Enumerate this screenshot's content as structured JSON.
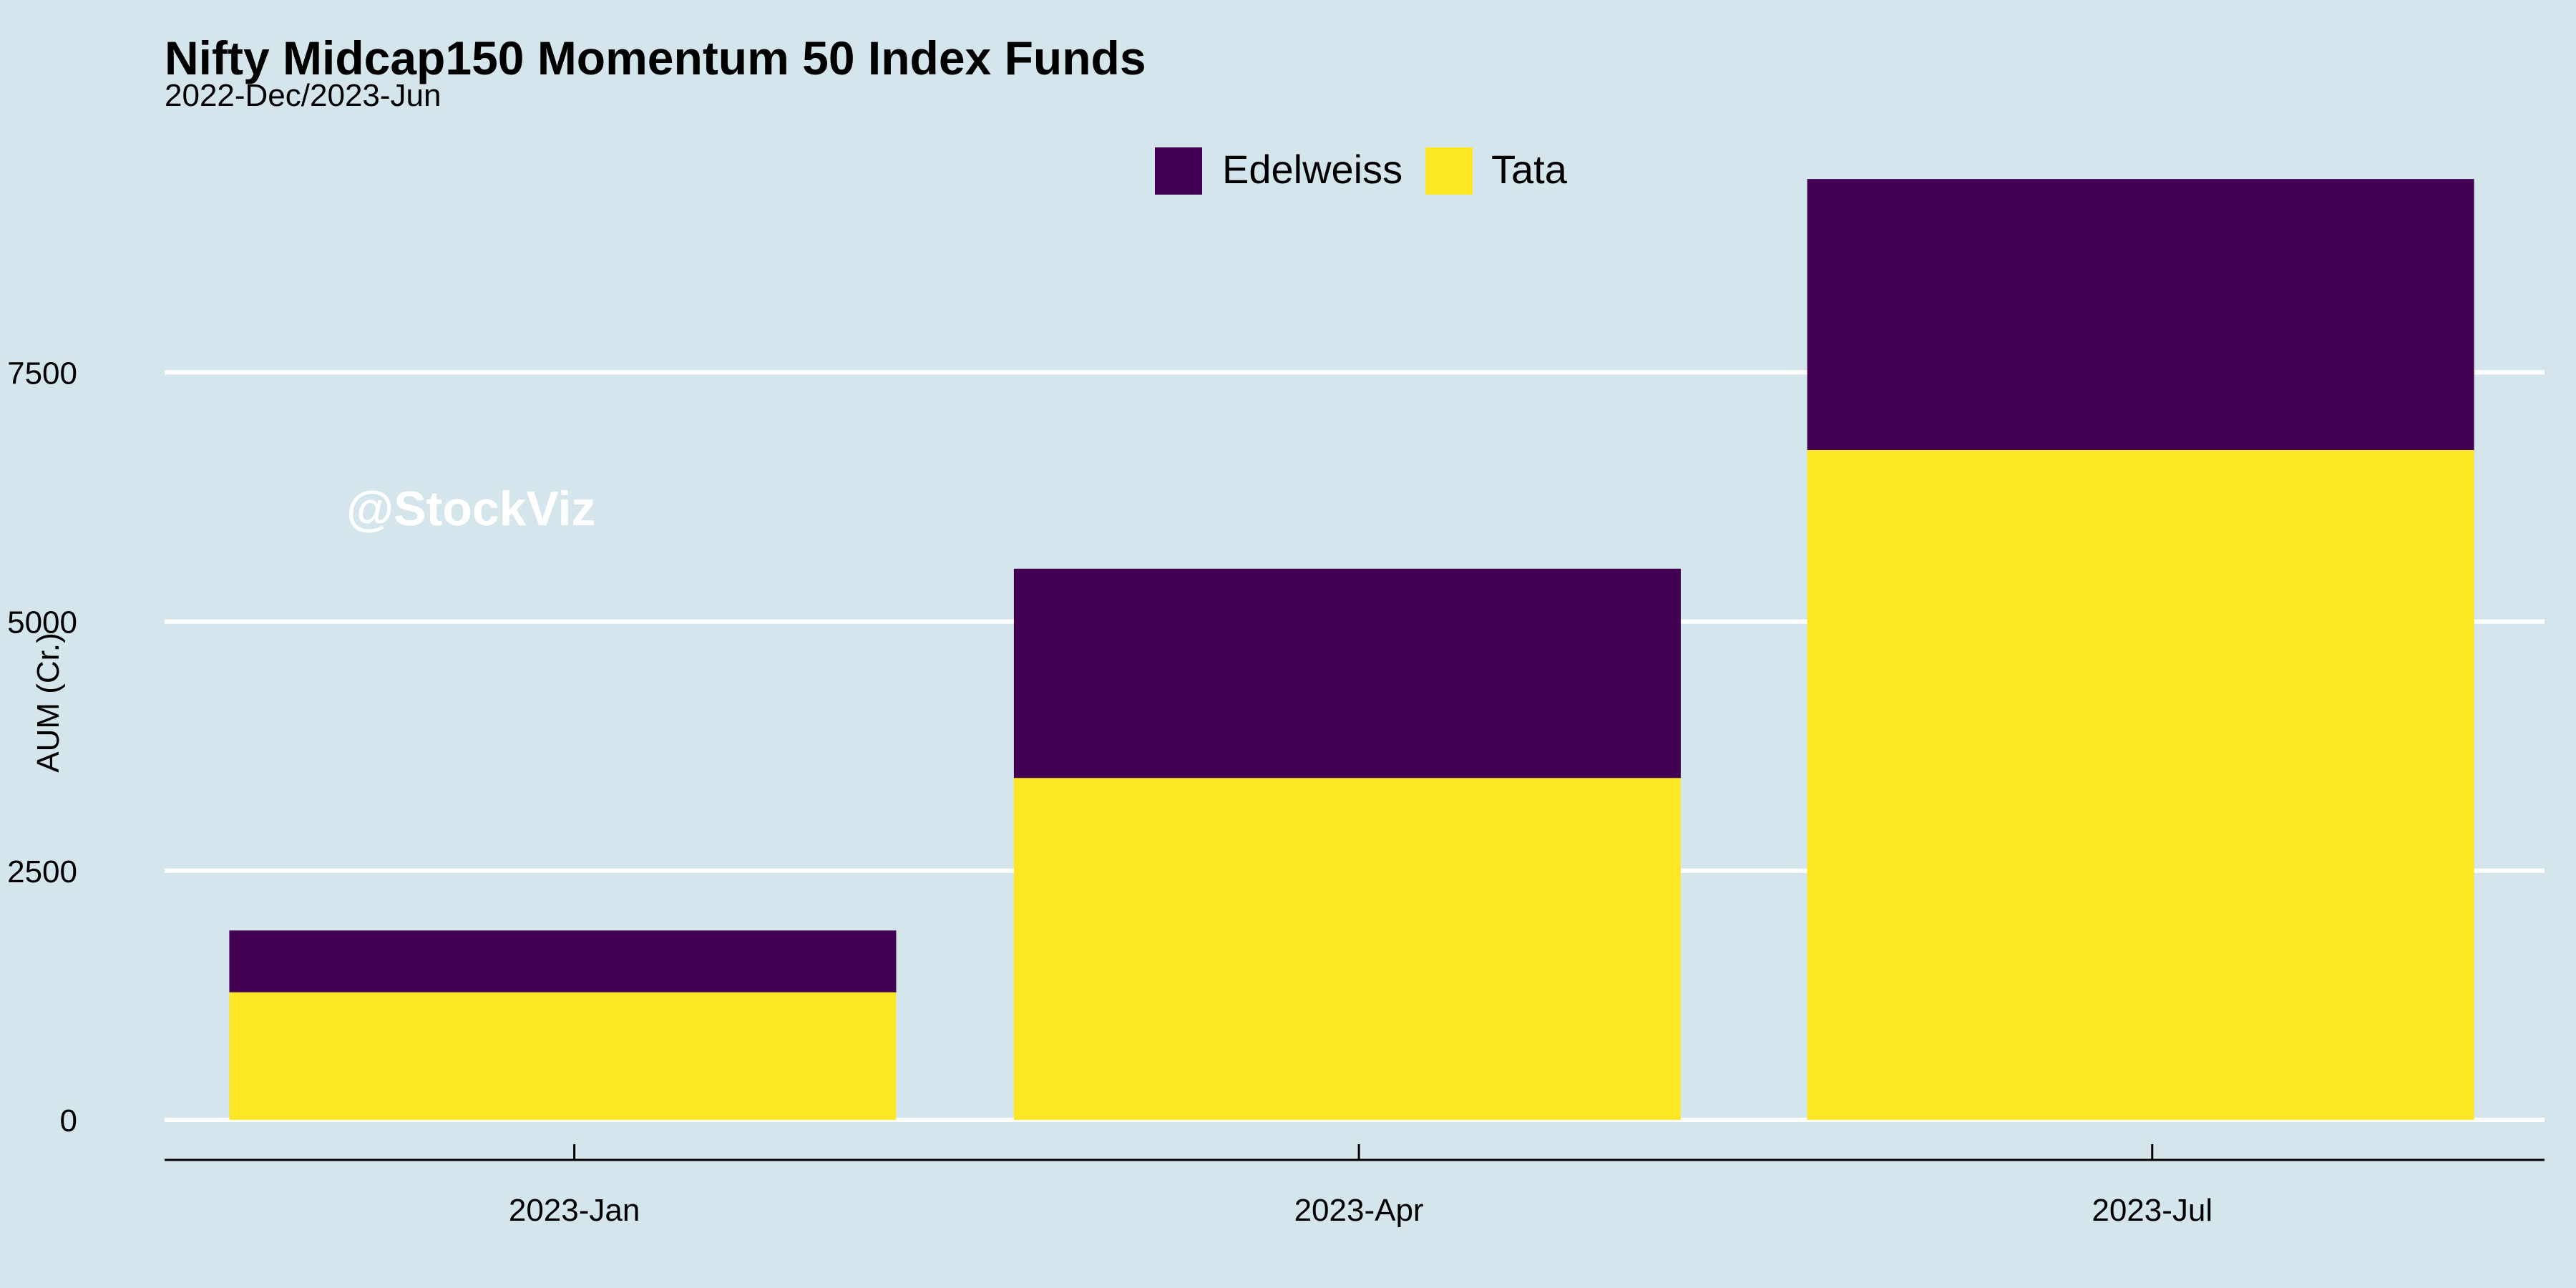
{
  "chart_data": {
    "type": "bar",
    "stacked": true,
    "title": "Nifty Midcap150 Momentum 50 Index Funds",
    "subtitle": "2022-Dec/2023-Jun",
    "ylabel": "AUM (Cr.)",
    "xlabel": "",
    "watermark": "@StockViz",
    "ylim": [
      0,
      9800
    ],
    "y_ticks": [
      0,
      2500,
      5000,
      7500
    ],
    "x_ticks": [
      "2023-Jan",
      "2023-Apr",
      "2023-Jul"
    ],
    "legend_position": "top",
    "grid": "horizontal",
    "bars": [
      {
        "date": "2022-12-31",
        "Tata": 1280,
        "Edelweiss": 620
      },
      {
        "date": "2023-03-31",
        "Tata": 3430,
        "Edelweiss": 2100
      },
      {
        "date": "2023-06-30",
        "Tata": 6720,
        "Edelweiss": 2720
      }
    ],
    "series": [
      {
        "name": "Edelweiss",
        "color": "#440154"
      },
      {
        "name": "Tata",
        "color": "#fde725"
      }
    ]
  }
}
